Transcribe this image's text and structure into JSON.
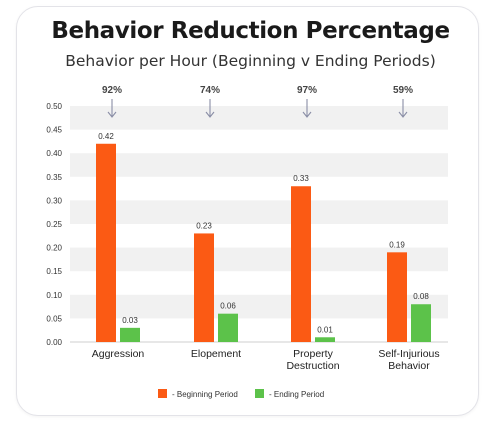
{
  "chart_data": {
    "type": "bar",
    "title": "Behavior Reduction Percentage",
    "subtitle": "Behavior per Hour (Beginning v Ending Periods)",
    "categories": [
      "Aggression",
      "Elopement",
      "Property Destruction",
      "Self-Injurious Behavior"
    ],
    "category_lines": [
      [
        "Aggression"
      ],
      [
        "Elopement"
      ],
      [
        "Property",
        "Destruction"
      ],
      [
        "Self-Injurious",
        "Behavior"
      ]
    ],
    "series": [
      {
        "name": "- Beginning Period",
        "color": "#fb5a14",
        "values": [
          0.42,
          0.23,
          0.33,
          0.19
        ]
      },
      {
        "name": "- Ending Period",
        "color": "#5cc24a",
        "values": [
          0.03,
          0.06,
          0.01,
          0.08
        ]
      }
    ],
    "value_labels": [
      [
        "0.42",
        "0.23",
        "0.33",
        "0.19"
      ],
      [
        "0.03",
        "0.06",
        "0.01",
        "0.08"
      ]
    ],
    "reduction_labels": [
      "92%",
      "74%",
      "97%",
      "59%"
    ],
    "ylim": [
      0,
      0.5
    ],
    "y_ticks": [
      "0.00",
      "0.05",
      "0.10",
      "0.15",
      "0.20",
      "0.25",
      "0.30",
      "0.35",
      "0.40",
      "0.45",
      "0.50"
    ],
    "xlabel": "",
    "ylabel": "",
    "grid": "alternating horizontal bands",
    "legend_position": "bottom",
    "colors": {
      "band": "#f1f1f1",
      "arrow": "#8a8ea6",
      "text": "#333333"
    }
  }
}
